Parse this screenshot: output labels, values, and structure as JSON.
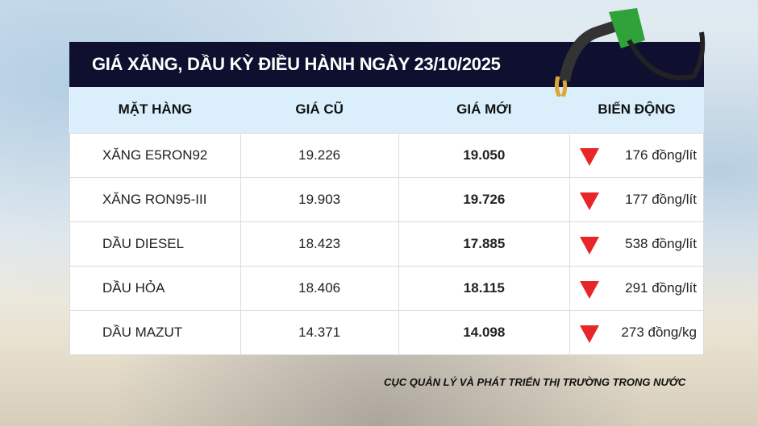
{
  "title": "GIÁ XĂNG, DẦU KỲ ĐIỀU HÀNH NGÀY 23/10/2025",
  "columns": [
    "MẶT HÀNG",
    "GIÁ CŨ",
    "GIÁ MỚI",
    "BIẾN ĐỘNG"
  ],
  "rows": [
    {
      "name": "XĂNG E5RON92",
      "old": "19.226",
      "new": "19.050",
      "change": "176 đồng/lít",
      "direction": "down"
    },
    {
      "name": "XĂNG RON95-III",
      "old": "19.903",
      "new": "19.726",
      "change": "177 đồng/lít",
      "direction": "down"
    },
    {
      "name": "DẦU DIESEL",
      "old": "18.423",
      "new": "17.885",
      "change": "538 đồng/lít",
      "direction": "down"
    },
    {
      "name": "DẦU HỎA",
      "old": "18.406",
      "new": "18.115",
      "change": "291 đồng/lít",
      "direction": "down"
    },
    {
      "name": "DẦU MAZUT",
      "old": "14.371",
      "new": "14.098",
      "change": "273 đồng/kg",
      "direction": "down"
    }
  ],
  "source": "CỤC QUẢN LÝ VÀ PHÁT TRIỂN THỊ TRƯỜNG TRONG NƯỚC",
  "colors": {
    "header_bg": "#0f1030",
    "column_header_bg": "#dbeefb",
    "down_arrow": "#e8262a"
  }
}
